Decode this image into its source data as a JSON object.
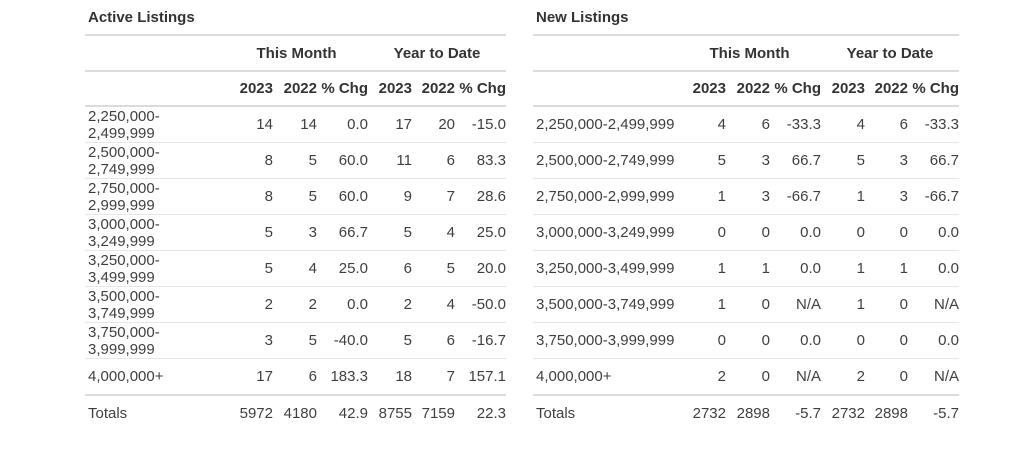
{
  "page": {
    "background": "#ffffff"
  },
  "colors": {
    "text": "#3f3f3f",
    "heading": "#333333",
    "section_line": "#dcdcdc",
    "row_line": "#e7e7e7"
  },
  "chart_data": [
    {
      "type": "table",
      "title": "Active Listings",
      "group_headers": [
        "This Month",
        "Year to Date"
      ],
      "columns": [
        "",
        "2023",
        "2022",
        "% Chg",
        "2023",
        "2022",
        "% Chg"
      ],
      "rows": [
        [
          "2,250,000-2,499,999",
          "14",
          "14",
          "0.0",
          "17",
          "20",
          "-15.0"
        ],
        [
          "2,500,000-2,749,999",
          "8",
          "5",
          "60.0",
          "11",
          "6",
          "83.3"
        ],
        [
          "2,750,000-2,999,999",
          "8",
          "5",
          "60.0",
          "9",
          "7",
          "28.6"
        ],
        [
          "3,000,000-3,249,999",
          "5",
          "3",
          "66.7",
          "5",
          "4",
          "25.0"
        ],
        [
          "3,250,000-3,499,999",
          "5",
          "4",
          "25.0",
          "6",
          "5",
          "20.0"
        ],
        [
          "3,500,000-3,749,999",
          "2",
          "2",
          "0.0",
          "2",
          "4",
          "-50.0"
        ],
        [
          "3,750,000-3,999,999",
          "3",
          "5",
          "-40.0",
          "5",
          "6",
          "-16.7"
        ],
        [
          "4,000,000+",
          "17",
          "6",
          "183.3",
          "18",
          "7",
          "157.1"
        ]
      ],
      "totals": [
        "Totals",
        "5972",
        "4180",
        "42.9",
        "8755",
        "7159",
        "22.3"
      ]
    },
    {
      "type": "table",
      "title": "New Listings",
      "group_headers": [
        "This Month",
        "Year to Date"
      ],
      "columns": [
        "",
        "2023",
        "2022",
        "% Chg",
        "2023",
        "2022",
        "% Chg"
      ],
      "rows": [
        [
          "2,250,000-2,499,999",
          "4",
          "6",
          "-33.3",
          "4",
          "6",
          "-33.3"
        ],
        [
          "2,500,000-2,749,999",
          "5",
          "3",
          "66.7",
          "5",
          "3",
          "66.7"
        ],
        [
          "2,750,000-2,999,999",
          "1",
          "3",
          "-66.7",
          "1",
          "3",
          "-66.7"
        ],
        [
          "3,000,000-3,249,999",
          "0",
          "0",
          "0.0",
          "0",
          "0",
          "0.0"
        ],
        [
          "3,250,000-3,499,999",
          "1",
          "1",
          "0.0",
          "1",
          "1",
          "0.0"
        ],
        [
          "3,500,000-3,749,999",
          "1",
          "0",
          "N/A",
          "1",
          "0",
          "N/A"
        ],
        [
          "3,750,000-3,999,999",
          "0",
          "0",
          "0.0",
          "0",
          "0",
          "0.0"
        ],
        [
          "4,000,000+",
          "2",
          "0",
          "N/A",
          "2",
          "0",
          "N/A"
        ]
      ],
      "totals": [
        "Totals",
        "2732",
        "2898",
        "-5.7",
        "2732",
        "2898",
        "-5.7"
      ]
    }
  ]
}
